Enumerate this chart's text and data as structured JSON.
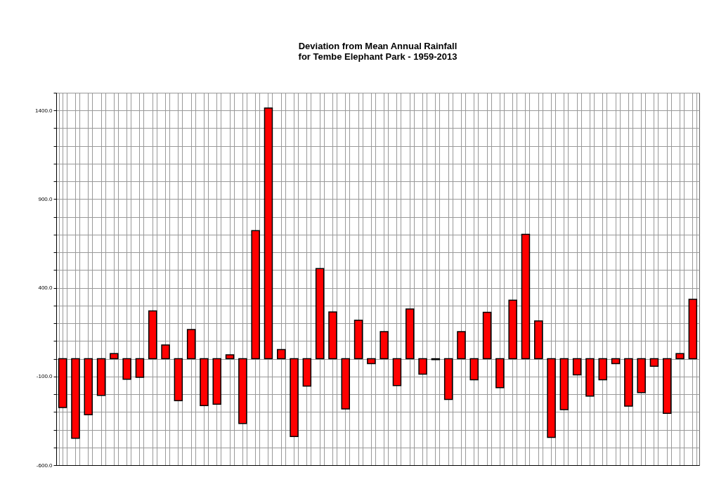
{
  "chart_data": {
    "type": "bar",
    "title": "Deviation from Mean Annual Rainfall\nfor Tembe Elephant Park - 1959-2013",
    "categories": [
      null,
      null,
      null,
      null,
      null,
      null,
      null,
      null,
      null,
      null,
      null,
      null,
      null,
      null,
      null,
      null,
      null,
      null,
      null,
      null,
      null,
      null,
      null,
      null,
      null,
      null,
      null,
      null,
      null,
      null,
      null,
      null,
      null,
      null,
      null,
      null,
      null,
      null,
      null,
      null,
      null,
      null,
      null,
      null,
      null,
      null,
      null,
      null,
      null,
      null
    ],
    "values": [
      -275,
      -448,
      -316,
      -207,
      29,
      -116,
      -105,
      270,
      78,
      -236,
      165,
      -264,
      -256,
      22,
      -365,
      722,
      1414,
      52,
      -439,
      -154,
      508,
      264,
      -283,
      217,
      -27,
      153,
      -151,
      281,
      -87,
      -5,
      -230,
      153,
      -119,
      262,
      -163,
      330,
      702,
      213,
      -443,
      -287,
      -91,
      -211,
      -119,
      -27,
      -267,
      -191,
      -42,
      -308,
      29,
      335
    ],
    "color": "#ff0000",
    "ylim": [
      -600,
      1500
    ],
    "yticks": [
      {
        "value": -600,
        "label": "-600.0"
      },
      {
        "value": -500,
        "label": null
      },
      {
        "value": -400,
        "label": null
      },
      {
        "value": -300,
        "label": null
      },
      {
        "value": -200,
        "label": null
      },
      {
        "value": -100,
        "label": "-100.0"
      },
      {
        "value": 0,
        "label": null
      },
      {
        "value": 100,
        "label": null
      },
      {
        "value": 200,
        "label": null
      },
      {
        "value": 300,
        "label": null
      },
      {
        "value": 400,
        "label": "400.0"
      },
      {
        "value": 500,
        "label": null
      },
      {
        "value": 600,
        "label": null
      },
      {
        "value": 700,
        "label": null
      },
      {
        "value": 800,
        "label": null
      },
      {
        "value": 900,
        "label": "900.0"
      },
      {
        "value": 1000,
        "label": null
      },
      {
        "value": 1100,
        "label": null
      },
      {
        "value": 1200,
        "label": null
      },
      {
        "value": 1300,
        "label": null
      },
      {
        "value": 1400,
        "label": "1400.0"
      },
      {
        "value": 1500,
        "label": null
      }
    ],
    "grid": true
  }
}
